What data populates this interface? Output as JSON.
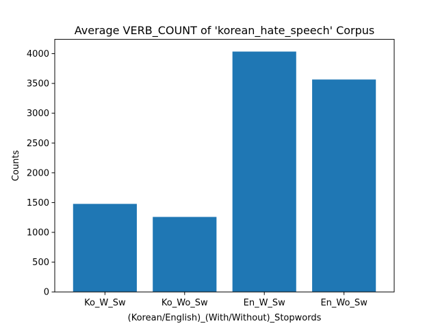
{
  "chart_data": {
    "type": "bar",
    "title": "Average VERB_COUNT of 'korean_hate_speech' Corpus",
    "xlabel": "(Korean/English)_(With/Without)_Stopwords",
    "ylabel": "Counts",
    "categories": [
      "Ko_W_Sw",
      "Ko_Wo_Sw",
      "En_W_Sw",
      "En_Wo_Sw"
    ],
    "values": [
      1478,
      1259,
      4035,
      3566
    ],
    "ylim": [
      0,
      4240
    ],
    "yticks": [
      0,
      500,
      1000,
      1500,
      2000,
      2500,
      3000,
      3500,
      4000
    ],
    "grid": false,
    "bar_color": "#1f77b4"
  }
}
